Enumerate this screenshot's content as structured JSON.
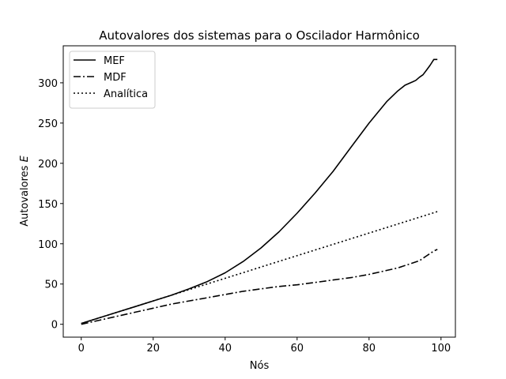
{
  "chart_data": {
    "type": "line",
    "title": "Autovalores dos sistemas para o Oscilador Harmônico",
    "xlabel": "Nós",
    "ylabel_prefix": "Autovalores",
    "ylabel_symbol": "E",
    "xlim": [
      -5,
      104
    ],
    "ylim": [
      -16,
      346
    ],
    "xticks": [
      0,
      20,
      40,
      60,
      80,
      100
    ],
    "yticks": [
      0,
      50,
      100,
      150,
      200,
      250,
      300
    ],
    "grid": false,
    "legend_position": "top-left",
    "series": [
      {
        "name": "MEF",
        "style": "solid",
        "color": "#000000",
        "x": [
          0,
          5,
          10,
          15,
          20,
          25,
          30,
          35,
          40,
          45,
          50,
          55,
          60,
          65,
          70,
          75,
          80,
          85,
          88,
          90,
          92,
          93,
          94,
          95,
          96,
          97,
          98,
          99
        ],
        "y": [
          1,
          8,
          15,
          22,
          29,
          36,
          44,
          53,
          64,
          78,
          95,
          115,
          138,
          163,
          190,
          220,
          250,
          277,
          290,
          297,
          301,
          303,
          307,
          310,
          316,
          322,
          329,
          329
        ]
      },
      {
        "name": "MDF",
        "style": "dashdot",
        "color": "#000000",
        "x": [
          0,
          5,
          10,
          15,
          20,
          25,
          30,
          35,
          40,
          45,
          50,
          55,
          60,
          65,
          70,
          75,
          80,
          85,
          88,
          90,
          92,
          94,
          95,
          96,
          97,
          98,
          99
        ],
        "y": [
          0,
          5,
          10,
          15,
          20,
          25,
          29,
          33,
          37,
          41,
          44,
          47,
          49,
          52,
          55,
          58,
          62,
          67,
          70,
          73,
          76,
          79,
          82,
          85,
          88,
          91,
          93
        ]
      },
      {
        "name": "Analítica",
        "style": "dotted",
        "color": "#000000",
        "x": [
          0,
          99
        ],
        "y": [
          1,
          140
        ]
      }
    ]
  }
}
